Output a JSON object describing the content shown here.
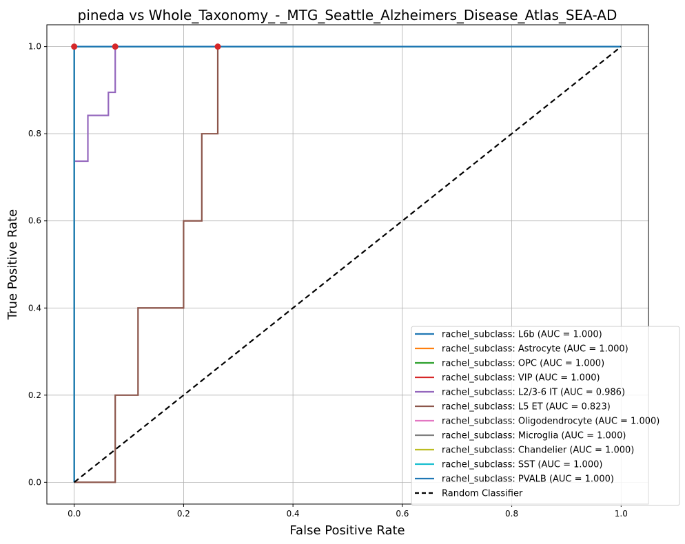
{
  "chart_data": {
    "type": "line",
    "title": "pineda vs Whole_Taxonomy_-_MTG_Seattle_Alzheimers_Disease_Atlas_SEA-AD",
    "xlabel": "False Positive Rate",
    "ylabel": "True Positive Rate",
    "xlim": [
      -0.05,
      1.05
    ],
    "ylim": [
      -0.05,
      1.05
    ],
    "xticks": [
      "0.0",
      "0.2",
      "0.4",
      "0.6",
      "0.8",
      "1.0"
    ],
    "yticks": [
      "0.0",
      "0.2",
      "0.4",
      "0.6",
      "0.8",
      "1.0"
    ],
    "xtick_values": [
      0,
      0.2,
      0.4,
      0.6,
      0.8,
      1.0
    ],
    "ytick_values": [
      0,
      0.2,
      0.4,
      0.6,
      0.8,
      1.0
    ],
    "grid": true,
    "legend_position": "lower-right",
    "series": [
      {
        "name": "rachel_subclass: L6b (AUC = 1.000)",
        "color": "#1f77b4",
        "x": [
          0,
          0,
          1
        ],
        "y": [
          0,
          1,
          1
        ]
      },
      {
        "name": "rachel_subclass: Astrocyte (AUC = 1.000)",
        "color": "#ff7f0e",
        "x": [
          0,
          0,
          1
        ],
        "y": [
          0,
          1,
          1
        ]
      },
      {
        "name": "rachel_subclass: OPC (AUC = 1.000)",
        "color": "#2ca02c",
        "x": [
          0,
          0,
          1
        ],
        "y": [
          0,
          1,
          1
        ]
      },
      {
        "name": "rachel_subclass: VIP (AUC = 1.000)",
        "color": "#d62728",
        "x": [
          0,
          0,
          1
        ],
        "y": [
          0,
          1,
          1
        ]
      },
      {
        "name": "rachel_subclass: L2/3-6 IT (AUC = 0.986)",
        "color": "#9467bd",
        "x": [
          0,
          0,
          0.025,
          0.025,
          0.0625,
          0.0625,
          0.075,
          0.075,
          1
        ],
        "y": [
          0,
          0.737,
          0.737,
          0.842,
          0.842,
          0.895,
          0.895,
          1,
          1
        ]
      },
      {
        "name": "rachel_subclass: L5 ET (AUC = 0.823)",
        "color": "#8c564b",
        "x": [
          0,
          0.075,
          0.075,
          0.1167,
          0.1167,
          0.2,
          0.2,
          0.2333,
          0.2333,
          0.2625,
          0.2625,
          1
        ],
        "y": [
          0,
          0,
          0.2,
          0.2,
          0.4,
          0.4,
          0.6,
          0.6,
          0.8,
          0.8,
          1,
          1
        ]
      },
      {
        "name": "rachel_subclass: Oligodendrocyte (AUC = 1.000)",
        "color": "#e377c2",
        "x": [
          0,
          0,
          1
        ],
        "y": [
          0,
          1,
          1
        ]
      },
      {
        "name": "rachel_subclass: Microglia (AUC = 1.000)",
        "color": "#7f7f7f",
        "x": [
          0,
          0,
          1
        ],
        "y": [
          0,
          1,
          1
        ]
      },
      {
        "name": "rachel_subclass: Chandelier (AUC = 1.000)",
        "color": "#bcbd22",
        "x": [
          0,
          0,
          1
        ],
        "y": [
          0,
          1,
          1
        ]
      },
      {
        "name": "rachel_subclass: SST (AUC = 1.000)",
        "color": "#17becf",
        "x": [
          0,
          0,
          1
        ],
        "y": [
          0,
          1,
          1
        ]
      },
      {
        "name": "rachel_subclass: PVALB (AUC = 1.000)",
        "color": "#1f77b4",
        "x": [
          0,
          0,
          1
        ],
        "y": [
          0,
          1,
          1
        ]
      }
    ],
    "reference_line": {
      "name": "Random Classifier",
      "color": "#000000",
      "style": "dashed",
      "x": [
        0,
        1
      ],
      "y": [
        0,
        1
      ]
    },
    "markers": {
      "color": "#d62728",
      "points": [
        [
          0,
          1
        ],
        [
          0.075,
          1
        ],
        [
          0.2625,
          1
        ]
      ]
    }
  }
}
